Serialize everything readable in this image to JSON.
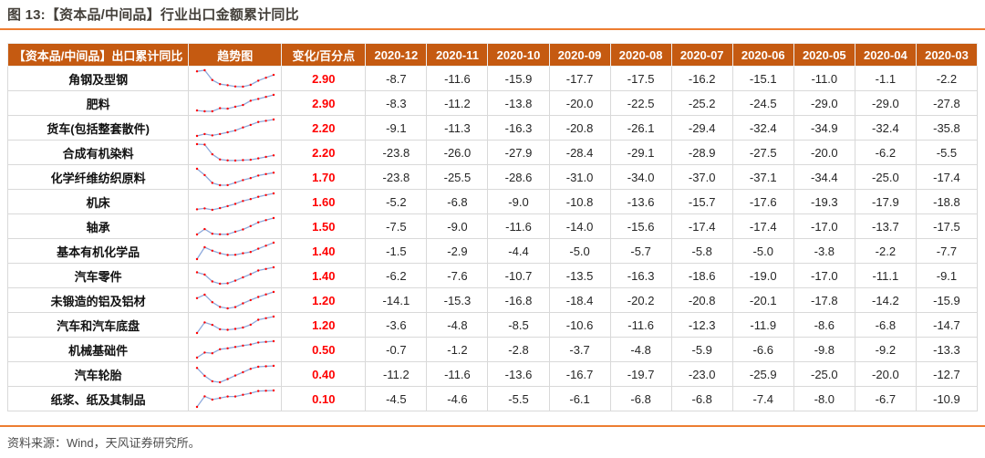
{
  "figure": {
    "title": "图 13:【资本品/中间品】行业出口金额累计同比"
  },
  "source_note": "资料来源：Wind，天风证券研究所。",
  "colors": {
    "header_bg": "#C55A11",
    "accent_rule": "#ED7D31",
    "change_text": "#FF0000",
    "sparkline_line": "#8FAADC",
    "sparkline_marker": "#FF0000"
  },
  "chart_data": {
    "type": "table",
    "title": "图 13:【资本品/中间品】行业出口金额累计同比",
    "columns": [
      "【资本品/中间品】出口累计同比",
      "趋势图",
      "变化/百分点",
      "2020-12",
      "2020-11",
      "2020-10",
      "2020-09",
      "2020-08",
      "2020-07",
      "2020-06",
      "2020-05",
      "2020-04",
      "2020-03"
    ],
    "rows": [
      {
        "name": "角钢及型钢",
        "change": 2.9,
        "values": [
          -8.7,
          -11.6,
          -15.9,
          -17.7,
          -17.5,
          -16.2,
          -15.1,
          -11.0,
          -1.1,
          -2.2
        ]
      },
      {
        "name": "肥料",
        "change": 2.9,
        "values": [
          -8.3,
          -11.2,
          -13.8,
          -20.0,
          -22.5,
          -25.2,
          -24.5,
          -29.0,
          -29.0,
          -27.8
        ]
      },
      {
        "name": "货车(包括整套散件)",
        "change": 2.2,
        "values": [
          -9.1,
          -11.3,
          -16.3,
          -20.8,
          -26.1,
          -29.4,
          -32.4,
          -34.9,
          -32.4,
          -35.8
        ]
      },
      {
        "name": "合成有机染料",
        "change": 2.2,
        "values": [
          -23.8,
          -26.0,
          -27.9,
          -28.4,
          -29.1,
          -28.9,
          -27.5,
          -20.0,
          -6.2,
          -5.5
        ]
      },
      {
        "name": "化学纤维纺织原料",
        "change": 1.7,
        "values": [
          -23.8,
          -25.5,
          -28.6,
          -31.0,
          -34.0,
          -37.0,
          -37.1,
          -34.4,
          -25.0,
          -17.4
        ]
      },
      {
        "name": "机床",
        "change": 1.6,
        "values": [
          -5.2,
          -6.8,
          -9.0,
          -10.8,
          -13.6,
          -15.7,
          -17.6,
          -19.3,
          -17.9,
          -18.8
        ]
      },
      {
        "name": "轴承",
        "change": 1.5,
        "values": [
          -7.5,
          -9.0,
          -11.6,
          -14.0,
          -15.6,
          -17.4,
          -17.4,
          -17.0,
          -13.7,
          -17.5
        ]
      },
      {
        "name": "基本有机化学品",
        "change": 1.4,
        "values": [
          -1.5,
          -2.9,
          -4.4,
          -5.0,
          -5.7,
          -5.8,
          -5.0,
          -3.8,
          -2.2,
          -7.7
        ]
      },
      {
        "name": "汽车零件",
        "change": 1.4,
        "values": [
          -6.2,
          -7.6,
          -10.7,
          -13.5,
          -16.3,
          -18.6,
          -19.0,
          -17.0,
          -11.1,
          -9.1
        ]
      },
      {
        "name": "未锻造的铝及铝材",
        "change": 1.2,
        "values": [
          -14.1,
          -15.3,
          -16.8,
          -18.4,
          -20.2,
          -20.8,
          -20.1,
          -17.8,
          -14.2,
          -15.9
        ]
      },
      {
        "name": "汽车和汽车底盘",
        "change": 1.2,
        "values": [
          -3.6,
          -4.8,
          -8.5,
          -10.6,
          -11.6,
          -12.3,
          -11.9,
          -8.6,
          -6.8,
          -14.7
        ]
      },
      {
        "name": "机械基础件",
        "change": 0.5,
        "values": [
          -0.7,
          -1.2,
          -2.8,
          -3.7,
          -4.8,
          -5.9,
          -6.6,
          -9.8,
          -9.2,
          -13.3
        ]
      },
      {
        "name": "汽车轮胎",
        "change": 0.4,
        "values": [
          -11.2,
          -11.6,
          -13.6,
          -16.7,
          -19.7,
          -23.0,
          -25.9,
          -25.0,
          -20.0,
          -12.7
        ]
      },
      {
        "name": "纸浆、纸及其制品",
        "change": 0.1,
        "values": [
          -4.5,
          -4.6,
          -5.5,
          -6.1,
          -6.8,
          -6.8,
          -7.4,
          -8.0,
          -6.7,
          -10.9
        ]
      }
    ]
  }
}
